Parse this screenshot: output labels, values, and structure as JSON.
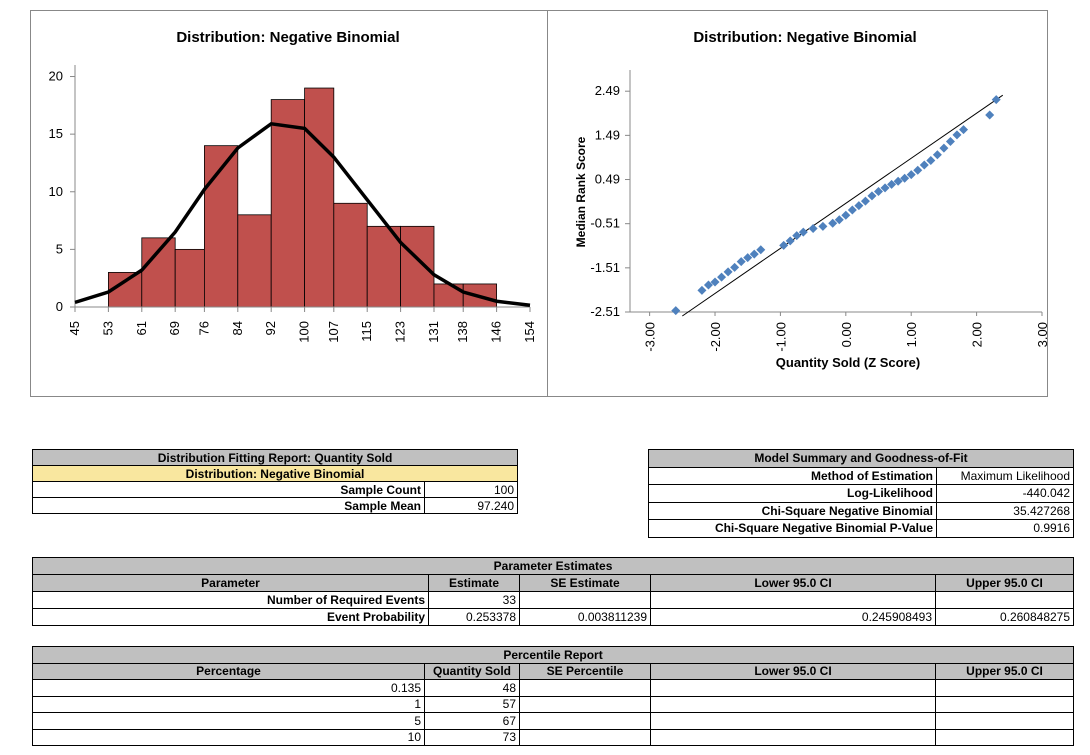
{
  "chart_data": [
    {
      "type": "histogram",
      "title": "Distribution: Negative Binomial",
      "bins": [
        45,
        53,
        61,
        69,
        76,
        84,
        92,
        100,
        107,
        115,
        123,
        131,
        138,
        146,
        154
      ],
      "counts": [
        0,
        3,
        6,
        5,
        14,
        8,
        18,
        19,
        9,
        7,
        7,
        2,
        2,
        0
      ],
      "color": "#c0504d",
      "fit_line": {
        "x": [
          45,
          53,
          61,
          69,
          76,
          84,
          92,
          100,
          107,
          115,
          123,
          131,
          138,
          146,
          154
        ],
        "y": [
          0.4,
          1.3,
          3.2,
          6.5,
          10.2,
          13.8,
          15.9,
          15.5,
          13,
          9.3,
          5.6,
          2.8,
          1.3,
          0.5,
          0.15
        ],
        "color": "#000000"
      },
      "ylim": [
        0,
        21
      ],
      "yticks": [
        0,
        5,
        10,
        15,
        20
      ]
    },
    {
      "type": "scatter",
      "title": "Distribution: Negative Binomial",
      "x_label": "Quantity Sold (Z Score)",
      "y_label": "Median Rank Score",
      "x": [
        -2.6,
        -2.2,
        -2.1,
        -2.0,
        -1.9,
        -1.8,
        -1.7,
        -1.6,
        -1.5,
        -1.4,
        -1.3,
        -0.95,
        -0.85,
        -0.75,
        -0.65,
        -0.5,
        -0.35,
        -0.2,
        -0.1,
        0.0,
        0.1,
        0.2,
        0.3,
        0.4,
        0.5,
        0.6,
        0.7,
        0.8,
        0.9,
        1.0,
        1.1,
        1.2,
        1.3,
        1.4,
        1.5,
        1.6,
        1.7,
        1.8,
        2.2,
        2.3
      ],
      "y": [
        -2.48,
        -2.02,
        -1.9,
        -1.83,
        -1.72,
        -1.6,
        -1.5,
        -1.37,
        -1.28,
        -1.2,
        -1.1,
        -1.0,
        -0.9,
        -0.78,
        -0.7,
        -0.62,
        -0.57,
        -0.5,
        -0.42,
        -0.32,
        -0.2,
        -0.1,
        0.0,
        0.12,
        0.22,
        0.3,
        0.38,
        0.45,
        0.52,
        0.6,
        0.7,
        0.82,
        0.92,
        1.05,
        1.2,
        1.35,
        1.5,
        1.62,
        1.95,
        2.3
      ],
      "color": "#4f81bd",
      "reference_line": {
        "x": [
          -2.5,
          2.4
        ],
        "y": [
          -2.6,
          2.4
        ],
        "color": "#000000"
      },
      "xlim": [
        -3.3,
        3.0
      ],
      "ylim": [
        -2.51,
        2.97
      ],
      "xticks": [
        {
          "value": -3,
          "label": "-3.00"
        },
        {
          "value": -2,
          "label": "-2.00"
        },
        {
          "value": -1,
          "label": "-1.00"
        },
        {
          "value": 0,
          "label": "0.00"
        },
        {
          "value": 1,
          "label": "1.00"
        },
        {
          "value": 2,
          "label": "2.00"
        },
        {
          "value": 3,
          "label": "3.00"
        }
      ],
      "yticks": [
        -2.51,
        -1.51,
        -0.51,
        0.49,
        1.49,
        2.49
      ]
    }
  ],
  "tables": [
    {
      "title": "Distribution Fitting Report: Quantity Sold",
      "subtitle": "Distribution: Negative Binomial",
      "rows": [
        [
          "Sample Count",
          "100"
        ],
        [
          "Sample Mean",
          "97.240"
        ]
      ]
    },
    {
      "title": "Model Summary and Goodness-of-Fit",
      "rows": [
        [
          "Method of Estimation",
          "Maximum Likelihood"
        ],
        [
          "Log-Likelihood",
          "-440.042"
        ],
        [
          "Chi-Square Negative Binomial",
          "35.427268"
        ],
        [
          "Chi-Square Negative Binomial P-Value",
          "0.9916"
        ]
      ]
    },
    {
      "title": "Parameter Estimates",
      "columns": [
        "Parameter",
        "Estimate",
        "SE Estimate",
        "Lower 95.0 CI",
        "Upper 95.0 CI"
      ],
      "rows": [
        [
          "Number of Required Events",
          "33",
          null,
          null,
          null
        ],
        [
          "Event Probability",
          "0.253378",
          "0.003811239",
          "0.245908493",
          "0.260848275"
        ]
      ]
    },
    {
      "title": "Percentile Report",
      "columns": [
        "Percentage",
        "Quantity Sold",
        "SE Percentile",
        "Lower 95.0 CI",
        "Upper 95.0 CI"
      ],
      "rows": [
        [
          "0.135",
          "48",
          null,
          null,
          null
        ],
        [
          "1",
          "57",
          null,
          null,
          null
        ],
        [
          "5",
          "67",
          null,
          null,
          null
        ],
        [
          "10",
          "73",
          null,
          null,
          null
        ]
      ]
    }
  ]
}
